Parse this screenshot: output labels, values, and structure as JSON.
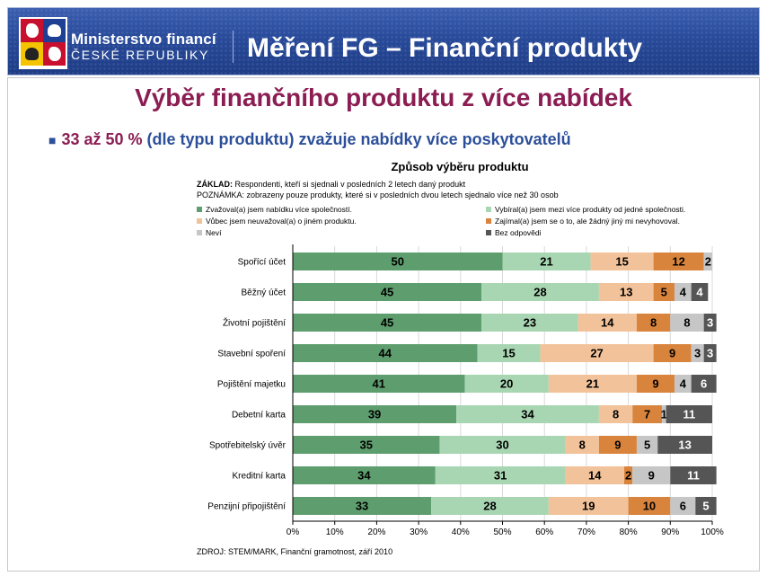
{
  "header": {
    "ministry_line1": "Ministerstvo financí",
    "ministry_line2": "ČESKÉ REPUBLIKY",
    "title": "Měření FG – Finanční produkty"
  },
  "slide": {
    "title": "Výběr finančního produktu z více nabídek",
    "bullet_accent": "33 až 50 %",
    "bullet_rest": "(dle typu produktu) zvažuje nabídky více poskytovatelů"
  },
  "colors": {
    "header_blue": "#284a9a",
    "title_maroon": "#8b1d52",
    "bullet_blue": "#2c4f9a"
  },
  "chart_data": {
    "type": "bar",
    "orientation": "horizontal",
    "stacked": true,
    "title": "Způsob výběru produktu",
    "base_label": "ZÁKLAD:",
    "base_text": "Respondenti, kteří si sjednali v posledních 2 letech daný produkt",
    "note_label": "POZNÁMKA:",
    "note_text": "zobrazeny pouze produkty, které si v posledních dvou letech sjednalo více než 30 osob",
    "source": "ZDROJ: STEM/MARK, Finanční gramotnost, září 2010",
    "categories": [
      "Spořící účet",
      "Běžný účet",
      "Životní pojištění",
      "Stavební spoření",
      "Pojištění majetku",
      "Debetní karta",
      "Spotřebitelský úvěr",
      "Kreditní karta",
      "Penzijní připojištění"
    ],
    "series": [
      {
        "name": "Zvažoval(a) jsem nabídku více společností.",
        "color": "#5e9e6e",
        "values": [
          50,
          45,
          45,
          44,
          41,
          39,
          35,
          34,
          33
        ]
      },
      {
        "name": "Vybíral(a) jsem mezi více produkty od jedné společnosti.",
        "color": "#a9d6b2",
        "values": [
          21,
          28,
          23,
          15,
          20,
          34,
          30,
          31,
          28
        ]
      },
      {
        "name": "Vůbec jsem neuvažoval(a) o jiném produktu.",
        "color": "#f2c39a",
        "values": [
          15,
          13,
          14,
          27,
          21,
          8,
          8,
          14,
          19
        ]
      },
      {
        "name": "Zajímal(a) jsem se o to, ale žádný jiný mi nevyhovoval.",
        "color": "#d9843c",
        "values": [
          12,
          5,
          8,
          9,
          9,
          7,
          9,
          2,
          10
        ]
      },
      {
        "name": "Neví",
        "color": "#c6c6c6",
        "values": [
          2,
          4,
          8,
          3,
          4,
          1,
          5,
          9,
          6
        ]
      },
      {
        "name": "Bez odpovědi",
        "color": "#555555",
        "values": [
          0,
          4,
          3,
          3,
          6,
          11,
          13,
          11,
          5
        ]
      }
    ],
    "label_colors": [
      "#000000",
      "#000000",
      "#000000",
      "#000000",
      "#000000",
      "#ffffff"
    ],
    "x_ticks": [
      "0%",
      "10%",
      "20%",
      "30%",
      "40%",
      "50%",
      "60%",
      "70%",
      "80%",
      "90%",
      "100%"
    ],
    "xlim": [
      0,
      100
    ],
    "grid": true,
    "legend_placement": "top"
  }
}
